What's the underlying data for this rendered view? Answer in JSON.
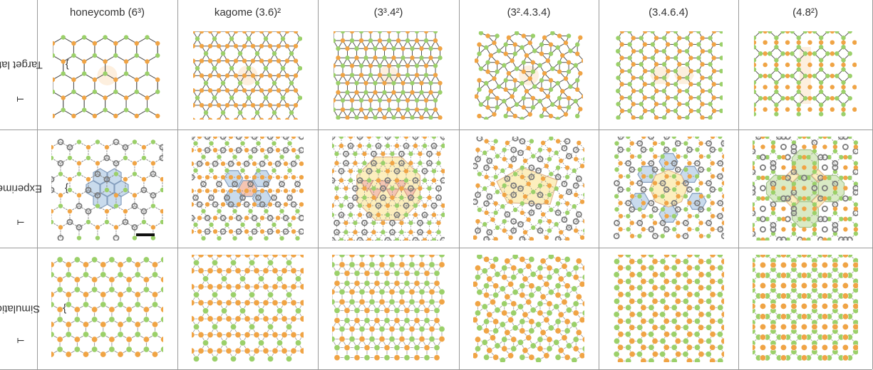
{
  "columns": [
    {
      "id": "honeycomb",
      "label": "honeycomb (6³)"
    },
    {
      "id": "kagome",
      "label": "kagome (3.6)²"
    },
    {
      "id": "3344",
      "label": "(3³.4²)"
    },
    {
      "id": "32434",
      "label": "(3².4.3.4)"
    },
    {
      "id": "3464",
      "label": "(3.4.6.4)"
    },
    {
      "id": "488",
      "label": "(4.8²)"
    }
  ],
  "rows": [
    {
      "id": "target",
      "label": "Target lattice {V<sub>T</sub>}",
      "text": "Target lattice {V",
      "sub": "T",
      "close": "}"
    },
    {
      "id": "experiments",
      "label": "Experiments {V_T}",
      "text": "Experiments {V",
      "sub": "T",
      "close": "}"
    },
    {
      "id": "simulations",
      "label": "Simulations {V_T}",
      "text": "Simulations {V",
      "sub": "T",
      "close": "}"
    }
  ],
  "colors": {
    "orange": "#f0a445",
    "green": "#9bd06a",
    "edge": "#6a6a6a",
    "tile_orange": "#fbe2c2",
    "tile_blue": "#b8cfe8",
    "tile_green": "#cde4b2",
    "tile_yellow": "#fbe9a8",
    "tile_red": "#f1b29a",
    "ring_grey": "#7a7a7a",
    "grid_line": "#9a9a9a",
    "scalebar": "#111111"
  }
}
